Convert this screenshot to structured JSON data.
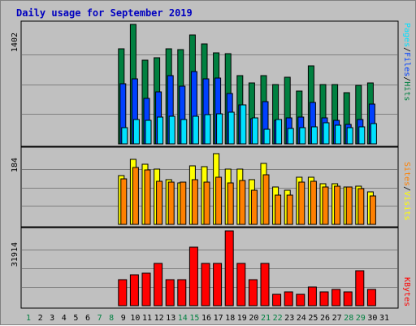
{
  "title": "Daily usage for September 2019",
  "colors": {
    "hits": "#008040",
    "files": "#0040ff",
    "pages": "#00e0ff",
    "visits": "#ffff00",
    "sites": "#ff8000",
    "kbytes": "#ff0000",
    "weekday": "#000000",
    "weekend": "#008040",
    "panel_bg": "#c0c0c0",
    "grid": "#808080"
  },
  "legend": {
    "pages": "Pages",
    "files": "Files",
    "hits": "Hits",
    "sites": "Sites",
    "visits": "Visits",
    "kbytes": "KBytes",
    "sep": "/"
  },
  "chart_data": {
    "type": "bar",
    "title": "Daily usage for September 2019",
    "categories": [
      "1",
      "2",
      "3",
      "4",
      "5",
      "6",
      "7",
      "8",
      "9",
      "10",
      "11",
      "12",
      "13",
      "14",
      "15",
      "16",
      "17",
      "18",
      "19",
      "20",
      "21",
      "22",
      "23",
      "24",
      "25",
      "26",
      "27",
      "28",
      "29",
      "30",
      "31"
    ],
    "weekend_days": [
      "1",
      "7",
      "8",
      "14",
      "15",
      "21",
      "22",
      "28",
      "29"
    ],
    "panels": [
      {
        "name": "hits-files-pages",
        "ymax": 1402,
        "max_label": "1402",
        "series": [
          {
            "name": "Hits",
            "color": "#008040",
            "values": [
              0,
              0,
              0,
              0,
              0,
              0,
              0,
              0,
              1118,
              1402,
              980,
              1010,
              1120,
              1106,
              1279,
              1177,
              1064,
              1057,
              802,
              716,
              802,
              698,
              780,
              616,
              918,
              699,
              692,
              598,
              690,
              713,
              0
            ]
          },
          {
            "name": "Files",
            "color": "#0040ff",
            "values": [
              0,
              0,
              0,
              0,
              0,
              0,
              0,
              0,
              703,
              762,
              533,
              612,
              798,
              677,
              850,
              764,
              776,
              592,
              455,
              293,
              498,
              273,
              309,
              311,
              491,
              301,
              280,
              226,
              290,
              470,
              0
            ]
          },
          {
            "name": "Pages",
            "color": "#00e0ff",
            "values": [
              0,
              0,
              0,
              0,
              0,
              0,
              0,
              0,
              195,
              290,
              281,
              317,
              327,
              284,
              320,
              347,
              355,
              369,
              457,
              306,
              176,
              284,
              179,
              189,
              205,
              249,
              219,
              190,
              198,
              239,
              0
            ]
          }
        ]
      },
      {
        "name": "visits-sites",
        "ymax": 184,
        "max_label": "184",
        "series": [
          {
            "name": "Visits",
            "color": "#ffff00",
            "values": [
              0,
              0,
              0,
              0,
              0,
              0,
              0,
              0,
              121,
              161,
              149,
              138,
              112,
              104,
              145,
              143,
              175,
              137,
              137,
              112,
              151,
              94,
              84,
              118,
              117,
              101,
              102,
              93,
              95,
              81,
              0
            ]
          },
          {
            "name": "Sites",
            "color": "#ff8000",
            "values": [
              0,
              0,
              0,
              0,
              0,
              0,
              0,
              0,
              114,
              142,
              136,
              108,
              106,
              106,
              112,
              106,
              118,
              103,
              110,
              85,
              124,
              73,
              73,
              106,
              107,
              94,
              95,
              93,
              88,
              70,
              0
            ]
          }
        ]
      },
      {
        "name": "kbytes",
        "ymax": 31914,
        "max_label": "31914",
        "series": [
          {
            "name": "KBytes",
            "color": "#ff0000",
            "values": [
              0,
              0,
              0,
              0,
              0,
              0,
              0,
              0,
              11002,
              13023,
              14001,
              18018,
              11002,
              11002,
              25025,
              18018,
              18018,
              31914,
              18018,
              11002,
              18018,
              5005,
              6006,
              5005,
              8008,
              6006,
              7007,
              6006,
              15015,
              7007,
              0
            ]
          }
        ]
      }
    ]
  }
}
